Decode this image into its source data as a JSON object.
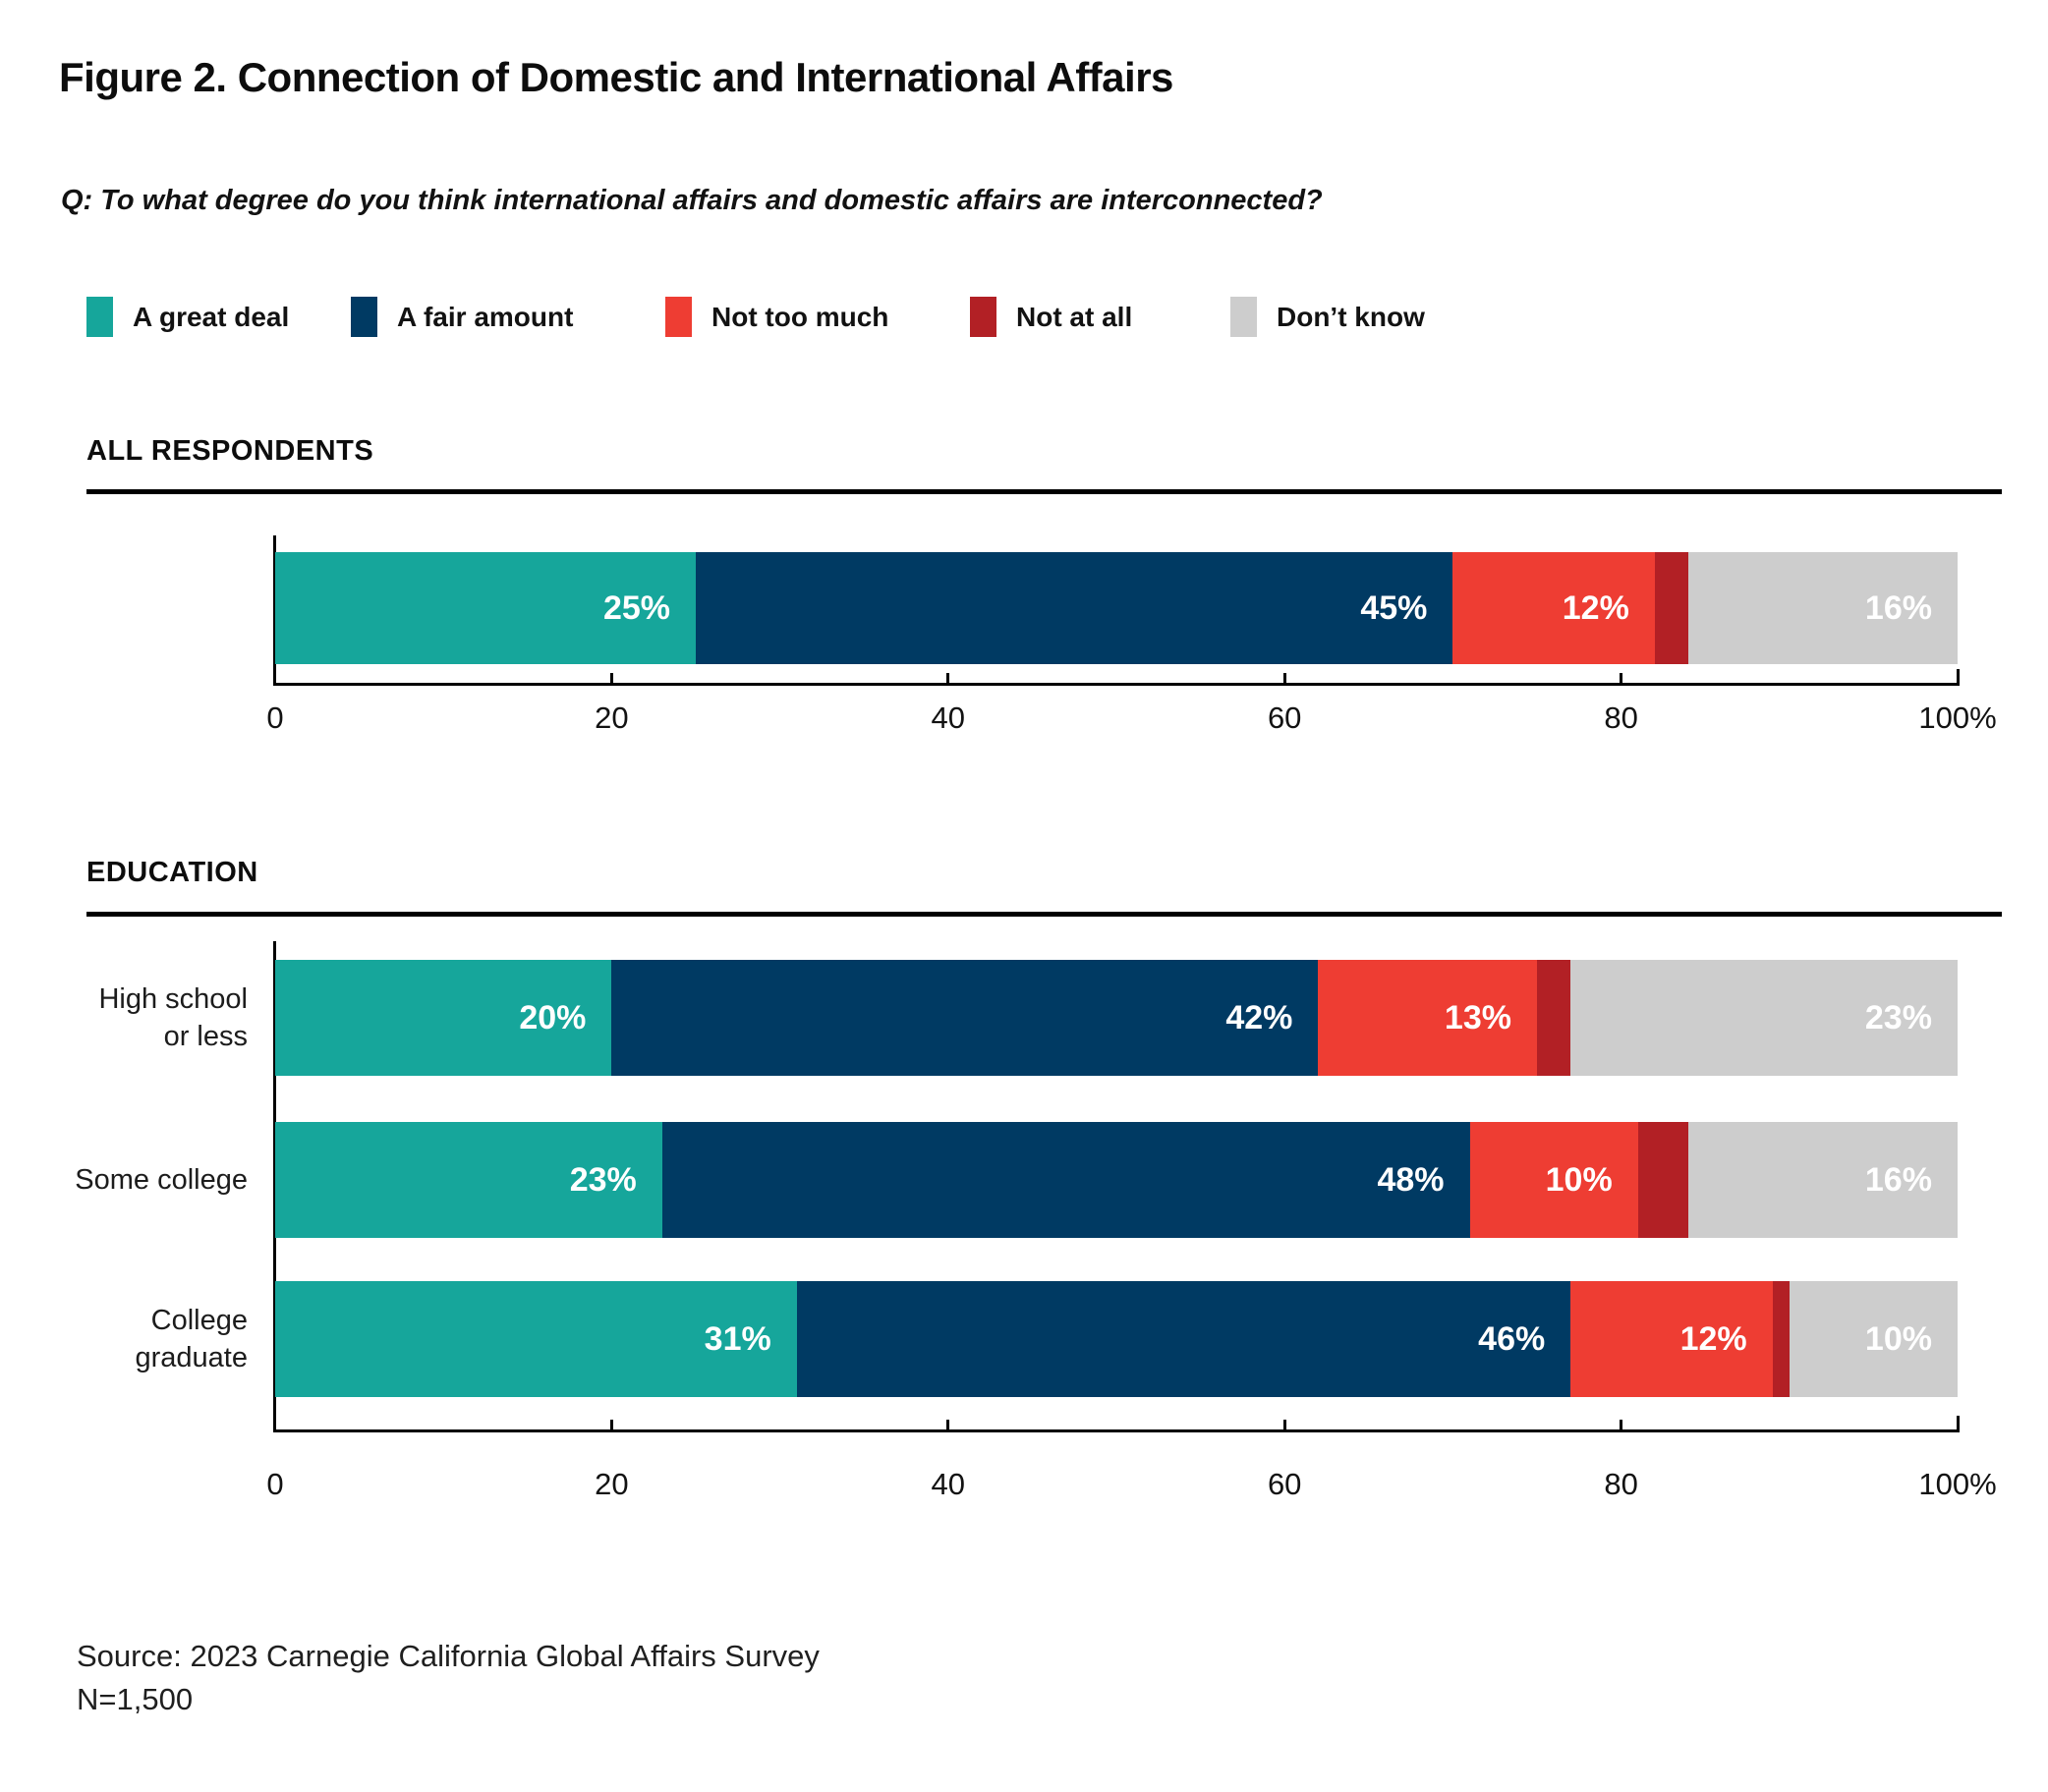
{
  "figure": {
    "title": "Figure 2. Connection of Domestic and International Affairs",
    "question": "Q: To what degree do you think international affairs and domestic affairs are interconnected?",
    "source_line1": "Source: 2023 Carnegie California Global Affairs Survey",
    "source_line2": "N=1,500"
  },
  "legend": [
    {
      "label": "A great deal",
      "color": "#16A69B"
    },
    {
      "label": "A fair amount",
      "color": "#003A63"
    },
    {
      "label": "Not too much",
      "color": "#EE3D33"
    },
    {
      "label": "Not at all",
      "color": "#B22025"
    },
    {
      "label": "Don’t know",
      "color": "#CDCDCD"
    }
  ],
  "chart_data": {
    "type": "bar",
    "orientation": "horizontal",
    "stacked": true,
    "unit": "%",
    "xlim": [
      0,
      100
    ],
    "x_tick_percents": [
      0,
      20,
      40,
      60,
      80,
      100
    ],
    "x_tick_labels": [
      "0",
      "20",
      "40",
      "60",
      "80",
      "100%"
    ],
    "legend_position": "top",
    "series_names": [
      "A great deal",
      "A fair amount",
      "Not too much",
      "Not at all",
      "Don't know"
    ],
    "sections": [
      {
        "heading": "ALL RESPONDENTS",
        "rows": [
          {
            "label": "",
            "values": [
              25,
              45,
              12,
              2,
              16
            ],
            "labels_shown": [
              "25%",
              "45%",
              "12%",
              "",
              "16%"
            ]
          }
        ]
      },
      {
        "heading": "EDUCATION",
        "rows": [
          {
            "label": "High school\nor less",
            "values": [
              20,
              42,
              13,
              2,
              23
            ],
            "labels_shown": [
              "20%",
              "42%",
              "13%",
              "",
              "23%"
            ]
          },
          {
            "label": "Some college",
            "values": [
              23,
              48,
              10,
              3,
              16
            ],
            "labels_shown": [
              "23%",
              "48%",
              "10%",
              "",
              "16%"
            ]
          },
          {
            "label": "College\ngraduate",
            "values": [
              31,
              46,
              12,
              1,
              10
            ],
            "labels_shown": [
              "31%",
              "46%",
              "12%",
              "",
              "10%"
            ]
          }
        ]
      }
    ]
  }
}
